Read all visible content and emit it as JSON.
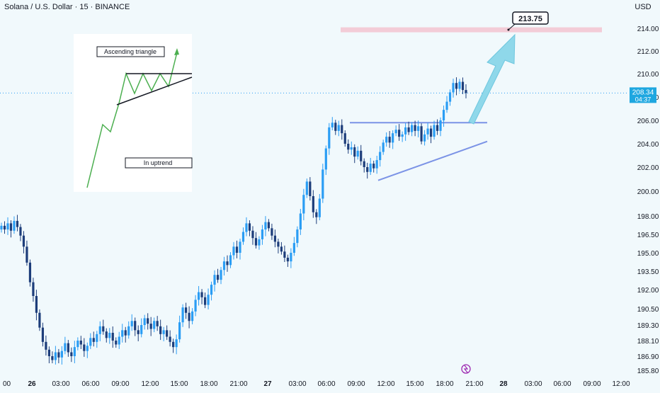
{
  "header": {
    "symbol_title": "Solana / U.S. Dollar · 15 · BINANCE",
    "currency": "USD"
  },
  "colors": {
    "background": "#f1f9fc",
    "up_candle": "#2a9df4",
    "down_candle": "#1d3d7a",
    "trendline": "#7b93e6",
    "target_zone": "#f3c7d3",
    "arrow_fill": "#8fd8ea",
    "price_tag": "#1ea7e0"
  },
  "chart_data": {
    "type": "candlestick",
    "y_ticks": [
      "214.00",
      "212.00",
      "210.00",
      "208.00",
      "206.00",
      "204.00",
      "202.00",
      "200.00",
      "198.00",
      "196.50",
      "195.00",
      "193.50",
      "192.00",
      "190.50",
      "189.30",
      "188.10",
      "186.90",
      "185.80"
    ],
    "x_ticks": [
      "26",
      "03:00",
      "06:00",
      "09:00",
      "12:00",
      "15:00",
      "18:00",
      "21:00",
      "27",
      "03:00",
      "06:00",
      "09:00",
      "12:00",
      "15:00",
      "18:00",
      "21:00",
      "28",
      "03:00",
      "06:00",
      "09:00",
      "12:00"
    ],
    "bold_x_ticks": [
      "26",
      "27",
      "28"
    ],
    "current_price": {
      "value": "208.34",
      "countdown": "04:37"
    },
    "target": {
      "label": "213.75",
      "value": 213.75
    },
    "target_zone_value": 213.9,
    "resistance_level": 205.8,
    "support_line": {
      "from": 200.9,
      "to": 204.2
    },
    "inset": {
      "title": "Ascending triangle",
      "subtitle": "In uptrend"
    },
    "closes": [
      197.2,
      196.9,
      197.4,
      196.8,
      197.6,
      197.1,
      196.4,
      195.5,
      194.2,
      192.6,
      191.5,
      190.2,
      189.1,
      188.0,
      187.4,
      186.9,
      186.6,
      187.2,
      186.8,
      187.3,
      187.9,
      187.2,
      186.9,
      187.6,
      188.1,
      187.8,
      187.3,
      187.7,
      188.3,
      188.0,
      188.6,
      189.2,
      188.8,
      188.3,
      188.7,
      188.1,
      187.8,
      188.4,
      188.9,
      188.5,
      189.2,
      189.6,
      188.9,
      188.6,
      189.3,
      189.8,
      189.4,
      189.0,
      189.6,
      189.2,
      188.6,
      188.9,
      188.4,
      188.0,
      187.6,
      188.2,
      189.5,
      190.6,
      190.2,
      189.6,
      190.3,
      191.2,
      191.8,
      191.4,
      190.8,
      191.6,
      192.4,
      193.2,
      192.8,
      193.6,
      194.3,
      194.0,
      194.8,
      195.5,
      195.0,
      195.9,
      196.7,
      197.4,
      196.8,
      196.2,
      195.6,
      196.1,
      196.9,
      197.5,
      197.0,
      196.4,
      195.9,
      195.5,
      195.1,
      194.6,
      194.3,
      195.0,
      195.8,
      196.9,
      198.2,
      199.7,
      200.8,
      199.6,
      198.3,
      197.9,
      199.4,
      201.8,
      203.6,
      205.4,
      205.8,
      205.1,
      205.6,
      204.9,
      204.0,
      203.5,
      203.7,
      202.9,
      203.4,
      202.5,
      202.0,
      201.6,
      202.3,
      201.9,
      202.6,
      203.3,
      204.1,
      204.6,
      204.1,
      204.9,
      205.2,
      204.6,
      204.8,
      205.4,
      205.0,
      205.6,
      205.1,
      205.5,
      204.2,
      204.8,
      205.3,
      204.6,
      205.6,
      205.1,
      206.0,
      206.9,
      207.6,
      208.4,
      209.2,
      208.7,
      209.3,
      208.6,
      208.34
    ]
  }
}
